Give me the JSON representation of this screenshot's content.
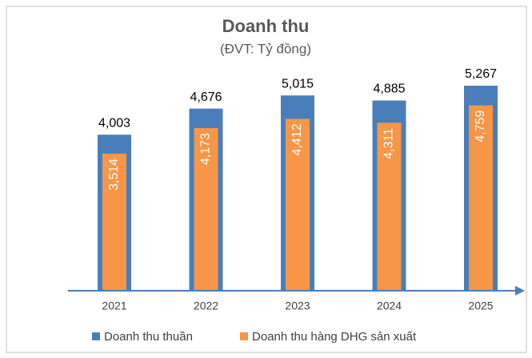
{
  "chart_data": {
    "type": "bar",
    "title": "Doanh thu",
    "subtitle": "(ĐVT: Tỷ đồng)",
    "categories": [
      "2021",
      "2022",
      "2023",
      "2024",
      "2025"
    ],
    "series": [
      {
        "name": "Doanh thu thuần",
        "color": "#4a7ebb",
        "values": [
          4003,
          4676,
          5015,
          4885,
          5267
        ],
        "value_labels": [
          "4,003",
          "4,676",
          "5,015",
          "4,885",
          "5,267"
        ]
      },
      {
        "name": "Doanh thu hàng DHG sản xuất",
        "color": "#f79646",
        "values": [
          3514,
          4173,
          4412,
          4311,
          4759
        ],
        "value_labels": [
          "3,514",
          "4,173",
          "4,412",
          "4,311",
          "4,759"
        ]
      }
    ],
    "legend": "bottom"
  }
}
